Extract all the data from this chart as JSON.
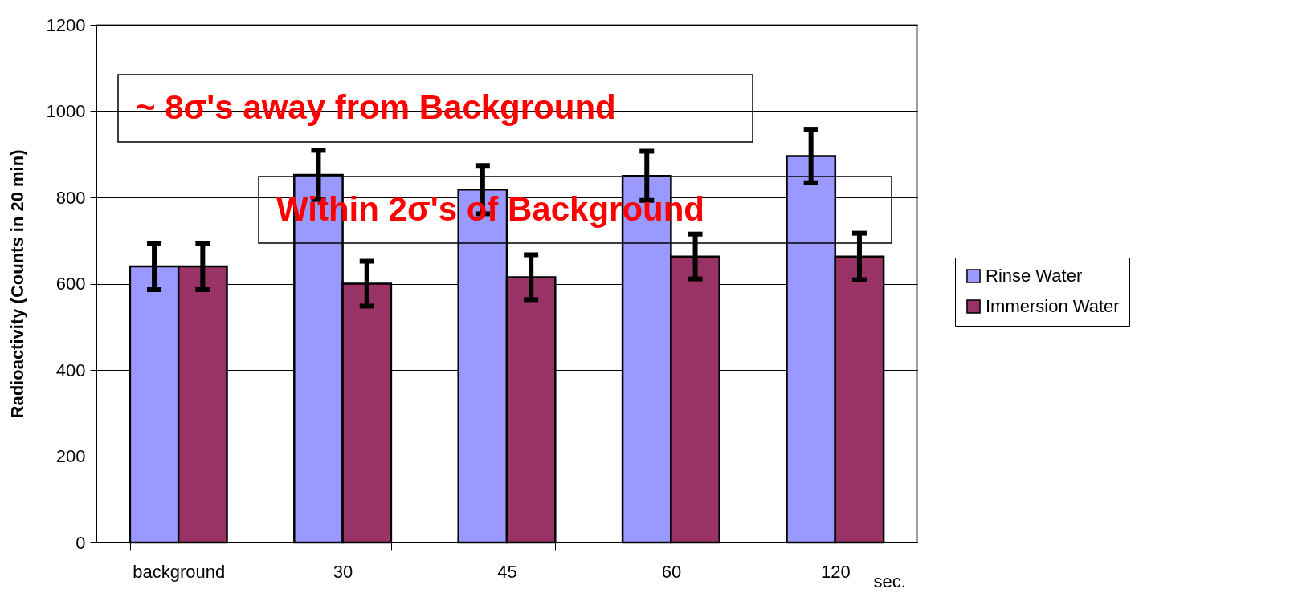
{
  "chart_data": {
    "type": "bar",
    "categories": [
      "background",
      "30",
      "45",
      "60",
      "120"
    ],
    "xlabel": "sec.",
    "ylabel": "Radioactivity (Counts in 20 min)",
    "series": [
      {
        "name": "Rinse Water",
        "color": "#9999ff",
        "values": [
          640,
          852,
          818,
          850,
          896
        ],
        "errors": [
          54,
          57,
          56,
          57,
          62
        ]
      },
      {
        "name": "Immersion Water",
        "color": "#993366",
        "values": [
          640,
          600,
          615,
          663,
          663
        ],
        "errors": [
          54,
          52,
          52,
          52,
          54
        ]
      }
    ],
    "ylim": [
      0,
      1200
    ],
    "yticks": [
      0,
      200,
      400,
      600,
      800,
      1000,
      1200
    ],
    "grid": "y",
    "legend": "right",
    "annotations": [
      "~ 8σ's away from Background",
      "Within 2σ's of Background"
    ]
  }
}
